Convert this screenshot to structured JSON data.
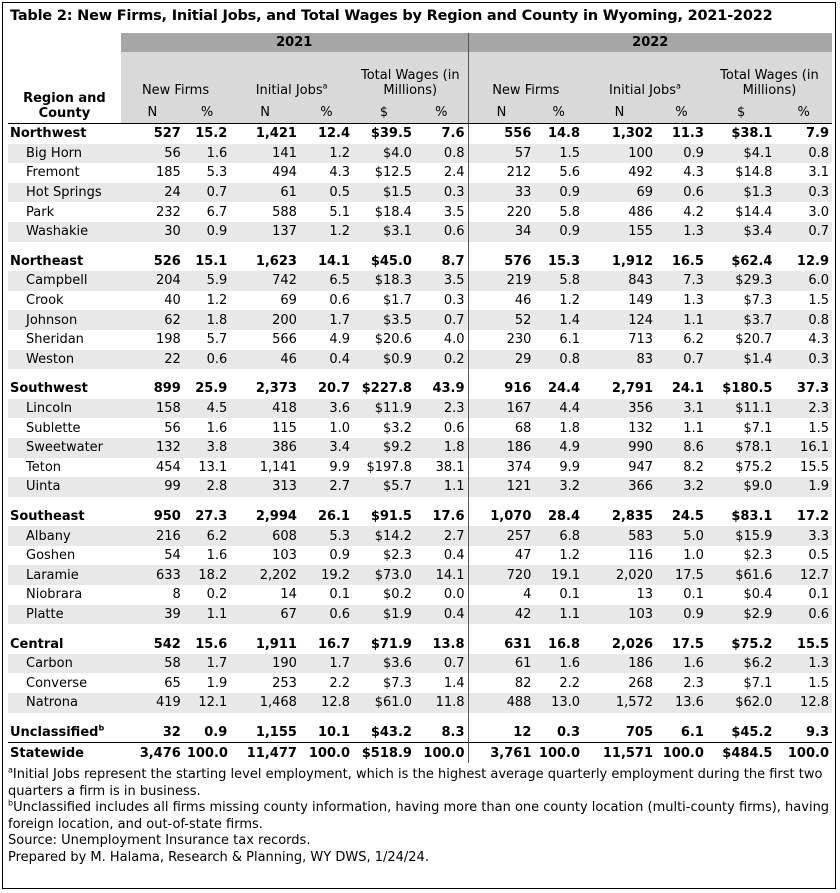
{
  "title": "Table 2: New Firms, Initial Jobs, and Total Wages by Region and County in Wyoming, 2021-2022",
  "header": {
    "years": [
      "2021",
      "2022"
    ],
    "row_header": "Region and County",
    "groups": [
      "New Firms",
      "Initial Jobs",
      "Total Wages (in Millions)"
    ],
    "initial_jobs_note_mark": "a",
    "subheads": [
      "N",
      "%",
      "N",
      "%",
      "$",
      "%"
    ]
  },
  "rows": [
    {
      "type": "region",
      "name": "Northwest",
      "y2021": [
        "527",
        "15.2",
        "1,421",
        "12.4",
        "$39.5",
        "7.6"
      ],
      "y2022": [
        "556",
        "14.8",
        "1,302",
        "11.3",
        "$38.1",
        "7.9"
      ]
    },
    {
      "type": "county",
      "name": "Big Horn",
      "y2021": [
        "56",
        "1.6",
        "141",
        "1.2",
        "$4.0",
        "0.8"
      ],
      "y2022": [
        "57",
        "1.5",
        "100",
        "0.9",
        "$4.1",
        "0.8"
      ]
    },
    {
      "type": "county",
      "name": "Fremont",
      "y2021": [
        "185",
        "5.3",
        "494",
        "4.3",
        "$12.5",
        "2.4"
      ],
      "y2022": [
        "212",
        "5.6",
        "492",
        "4.3",
        "$14.8",
        "3.1"
      ]
    },
    {
      "type": "county",
      "name": "Hot Springs",
      "y2021": [
        "24",
        "0.7",
        "61",
        "0.5",
        "$1.5",
        "0.3"
      ],
      "y2022": [
        "33",
        "0.9",
        "69",
        "0.6",
        "$1.3",
        "0.3"
      ]
    },
    {
      "type": "county",
      "name": "Park",
      "y2021": [
        "232",
        "6.7",
        "588",
        "5.1",
        "$18.4",
        "3.5"
      ],
      "y2022": [
        "220",
        "5.8",
        "486",
        "4.2",
        "$14.4",
        "3.0"
      ]
    },
    {
      "type": "county",
      "name": "Washakie",
      "y2021": [
        "30",
        "0.9",
        "137",
        "1.2",
        "$3.1",
        "0.6"
      ],
      "y2022": [
        "34",
        "0.9",
        "155",
        "1.3",
        "$3.4",
        "0.7"
      ]
    },
    {
      "type": "region",
      "name": "Northeast",
      "y2021": [
        "526",
        "15.1",
        "1,623",
        "14.1",
        "$45.0",
        "8.7"
      ],
      "y2022": [
        "576",
        "15.3",
        "1,912",
        "16.5",
        "$62.4",
        "12.9"
      ]
    },
    {
      "type": "county",
      "name": "Campbell",
      "y2021": [
        "204",
        "5.9",
        "742",
        "6.5",
        "$18.3",
        "3.5"
      ],
      "y2022": [
        "219",
        "5.8",
        "843",
        "7.3",
        "$29.3",
        "6.0"
      ]
    },
    {
      "type": "county",
      "name": "Crook",
      "y2021": [
        "40",
        "1.2",
        "69",
        "0.6",
        "$1.7",
        "0.3"
      ],
      "y2022": [
        "46",
        "1.2",
        "149",
        "1.3",
        "$7.3",
        "1.5"
      ]
    },
    {
      "type": "county",
      "name": "Johnson",
      "y2021": [
        "62",
        "1.8",
        "200",
        "1.7",
        "$3.5",
        "0.7"
      ],
      "y2022": [
        "52",
        "1.4",
        "124",
        "1.1",
        "$3.7",
        "0.8"
      ]
    },
    {
      "type": "county",
      "name": "Sheridan",
      "y2021": [
        "198",
        "5.7",
        "566",
        "4.9",
        "$20.6",
        "4.0"
      ],
      "y2022": [
        "230",
        "6.1",
        "713",
        "6.2",
        "$20.7",
        "4.3"
      ]
    },
    {
      "type": "county",
      "name": "Weston",
      "y2021": [
        "22",
        "0.6",
        "46",
        "0.4",
        "$0.9",
        "0.2"
      ],
      "y2022": [
        "29",
        "0.8",
        "83",
        "0.7",
        "$1.4",
        "0.3"
      ]
    },
    {
      "type": "region",
      "name": "Southwest",
      "y2021": [
        "899",
        "25.9",
        "2,373",
        "20.7",
        "$227.8",
        "43.9"
      ],
      "y2022": [
        "916",
        "24.4",
        "2,791",
        "24.1",
        "$180.5",
        "37.3"
      ]
    },
    {
      "type": "county",
      "name": "Lincoln",
      "y2021": [
        "158",
        "4.5",
        "418",
        "3.6",
        "$11.9",
        "2.3"
      ],
      "y2022": [
        "167",
        "4.4",
        "356",
        "3.1",
        "$11.1",
        "2.3"
      ]
    },
    {
      "type": "county",
      "name": "Sublette",
      "y2021": [
        "56",
        "1.6",
        "115",
        "1.0",
        "$3.2",
        "0.6"
      ],
      "y2022": [
        "68",
        "1.8",
        "132",
        "1.1",
        "$7.1",
        "1.5"
      ]
    },
    {
      "type": "county",
      "name": "Sweetwater",
      "y2021": [
        "132",
        "3.8",
        "386",
        "3.4",
        "$9.2",
        "1.8"
      ],
      "y2022": [
        "186",
        "4.9",
        "990",
        "8.6",
        "$78.1",
        "16.1"
      ]
    },
    {
      "type": "county",
      "name": "Teton",
      "y2021": [
        "454",
        "13.1",
        "1,141",
        "9.9",
        "$197.8",
        "38.1"
      ],
      "y2022": [
        "374",
        "9.9",
        "947",
        "8.2",
        "$75.2",
        "15.5"
      ]
    },
    {
      "type": "county",
      "name": "Uinta",
      "y2021": [
        "99",
        "2.8",
        "313",
        "2.7",
        "$5.7",
        "1.1"
      ],
      "y2022": [
        "121",
        "3.2",
        "366",
        "3.2",
        "$9.0",
        "1.9"
      ]
    },
    {
      "type": "region",
      "name": "Southeast",
      "y2021": [
        "950",
        "27.3",
        "2,994",
        "26.1",
        "$91.5",
        "17.6"
      ],
      "y2022": [
        "1,070",
        "28.4",
        "2,835",
        "24.5",
        "$83.1",
        "17.2"
      ]
    },
    {
      "type": "county",
      "name": "Albany",
      "y2021": [
        "216",
        "6.2",
        "608",
        "5.3",
        "$14.2",
        "2.7"
      ],
      "y2022": [
        "257",
        "6.8",
        "583",
        "5.0",
        "$15.9",
        "3.3"
      ]
    },
    {
      "type": "county",
      "name": "Goshen",
      "y2021": [
        "54",
        "1.6",
        "103",
        "0.9",
        "$2.3",
        "0.4"
      ],
      "y2022": [
        "47",
        "1.2",
        "116",
        "1.0",
        "$2.3",
        "0.5"
      ]
    },
    {
      "type": "county",
      "name": "Laramie",
      "y2021": [
        "633",
        "18.2",
        "2,202",
        "19.2",
        "$73.0",
        "14.1"
      ],
      "y2022": [
        "720",
        "19.1",
        "2,020",
        "17.5",
        "$61.6",
        "12.7"
      ]
    },
    {
      "type": "county",
      "name": "Niobrara",
      "y2021": [
        "8",
        "0.2",
        "14",
        "0.1",
        "$0.2",
        "0.0"
      ],
      "y2022": [
        "4",
        "0.1",
        "13",
        "0.1",
        "$0.4",
        "0.1"
      ]
    },
    {
      "type": "county",
      "name": "Platte",
      "y2021": [
        "39",
        "1.1",
        "67",
        "0.6",
        "$1.9",
        "0.4"
      ],
      "y2022": [
        "42",
        "1.1",
        "103",
        "0.9",
        "$2.9",
        "0.6"
      ]
    },
    {
      "type": "region",
      "name": "Central",
      "y2021": [
        "542",
        "15.6",
        "1,911",
        "16.7",
        "$71.9",
        "13.8"
      ],
      "y2022": [
        "631",
        "16.8",
        "2,026",
        "17.5",
        "$75.2",
        "15.5"
      ]
    },
    {
      "type": "county",
      "name": "Carbon",
      "y2021": [
        "58",
        "1.7",
        "190",
        "1.7",
        "$3.6",
        "0.7"
      ],
      "y2022": [
        "61",
        "1.6",
        "186",
        "1.6",
        "$6.2",
        "1.3"
      ]
    },
    {
      "type": "county",
      "name": "Converse",
      "y2021": [
        "65",
        "1.9",
        "253",
        "2.2",
        "$7.3",
        "1.4"
      ],
      "y2022": [
        "82",
        "2.2",
        "268",
        "2.3",
        "$7.1",
        "1.5"
      ]
    },
    {
      "type": "county",
      "name": "Natrona",
      "y2021": [
        "419",
        "12.1",
        "1,468",
        "12.8",
        "$61.0",
        "11.8"
      ],
      "y2022": [
        "488",
        "13.0",
        "1,572",
        "13.6",
        "$62.0",
        "12.8"
      ]
    },
    {
      "type": "region",
      "name": "Unclassified",
      "note_mark": "b",
      "y2021": [
        "32",
        "0.9",
        "1,155",
        "10.1",
        "$43.2",
        "8.3"
      ],
      "y2022": [
        "12",
        "0.3",
        "705",
        "6.1",
        "$45.2",
        "9.3"
      ]
    },
    {
      "type": "statewide",
      "name": "Statewide",
      "y2021": [
        "3,476",
        "100.0",
        "11,477",
        "100.0",
        "$518.9",
        "100.0"
      ],
      "y2022": [
        "3,761",
        "100.0",
        "11,571",
        "100.0",
        "$484.5",
        "100.0"
      ]
    }
  ],
  "footnotes": [
    {
      "mark": "a",
      "text": "Initial Jobs represent the starting level employment, which is the highest average quarterly employment during the first two quarters a firm is in business."
    },
    {
      "mark": "b",
      "text": "Unclassified includes all firms missing county information, having more than one county location (multi-county firms), having foreign location, and out-of-state firms."
    }
  ],
  "source": "Source: Unemployment Insurance tax records.",
  "prepared_by": "Prepared by M. Halama, Research & Planning, WY DWS, 1/24/24."
}
